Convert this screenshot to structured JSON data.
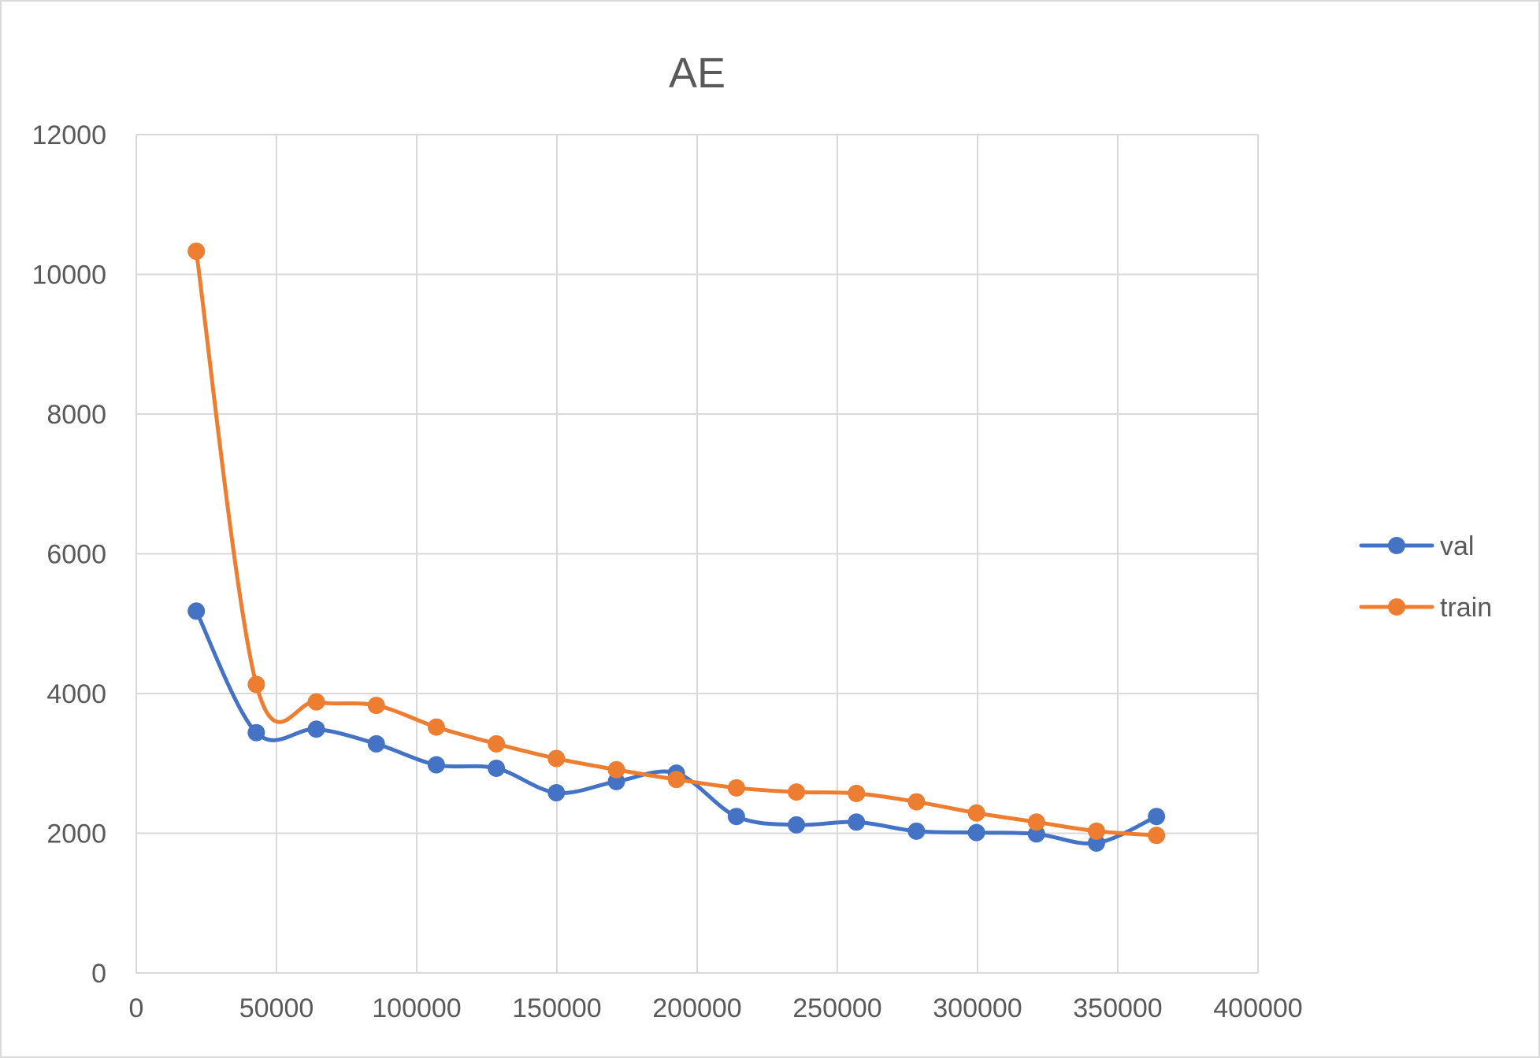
{
  "chart_data": {
    "type": "line",
    "title": "AE",
    "xlabel": "",
    "ylabel": "",
    "xlim": [
      0,
      400000
    ],
    "ylim": [
      0,
      12000
    ],
    "x_ticks": [
      0,
      50000,
      100000,
      150000,
      200000,
      250000,
      300000,
      350000,
      400000
    ],
    "y_ticks": [
      0,
      2000,
      4000,
      6000,
      8000,
      10000,
      12000
    ],
    "grid": true,
    "smooth": true,
    "legend_position": "right",
    "series": [
      {
        "name": "val",
        "color": "#4472c4",
        "marker": "circle",
        "x": [
          21400,
          42800,
          64200,
          85600,
          107000,
          128400,
          149800,
          171200,
          192600,
          214000,
          235400,
          256800,
          278200,
          299600,
          321000,
          342400,
          363800
        ],
        "y": [
          5180,
          3440,
          3490,
          3280,
          2980,
          2930,
          2580,
          2740,
          2860,
          2240,
          2120,
          2160,
          2030,
          2010,
          1990,
          1860,
          2240
        ]
      },
      {
        "name": "train",
        "color": "#ed7d31",
        "marker": "circle",
        "x": [
          21400,
          42800,
          64200,
          85600,
          107000,
          128400,
          149800,
          171200,
          192600,
          214000,
          235400,
          256800,
          278200,
          299600,
          321000,
          342400,
          363800
        ],
        "y": [
          10330,
          4130,
          3880,
          3830,
          3520,
          3280,
          3070,
          2910,
          2770,
          2650,
          2590,
          2570,
          2450,
          2290,
          2160,
          2030,
          1970
        ]
      }
    ]
  }
}
